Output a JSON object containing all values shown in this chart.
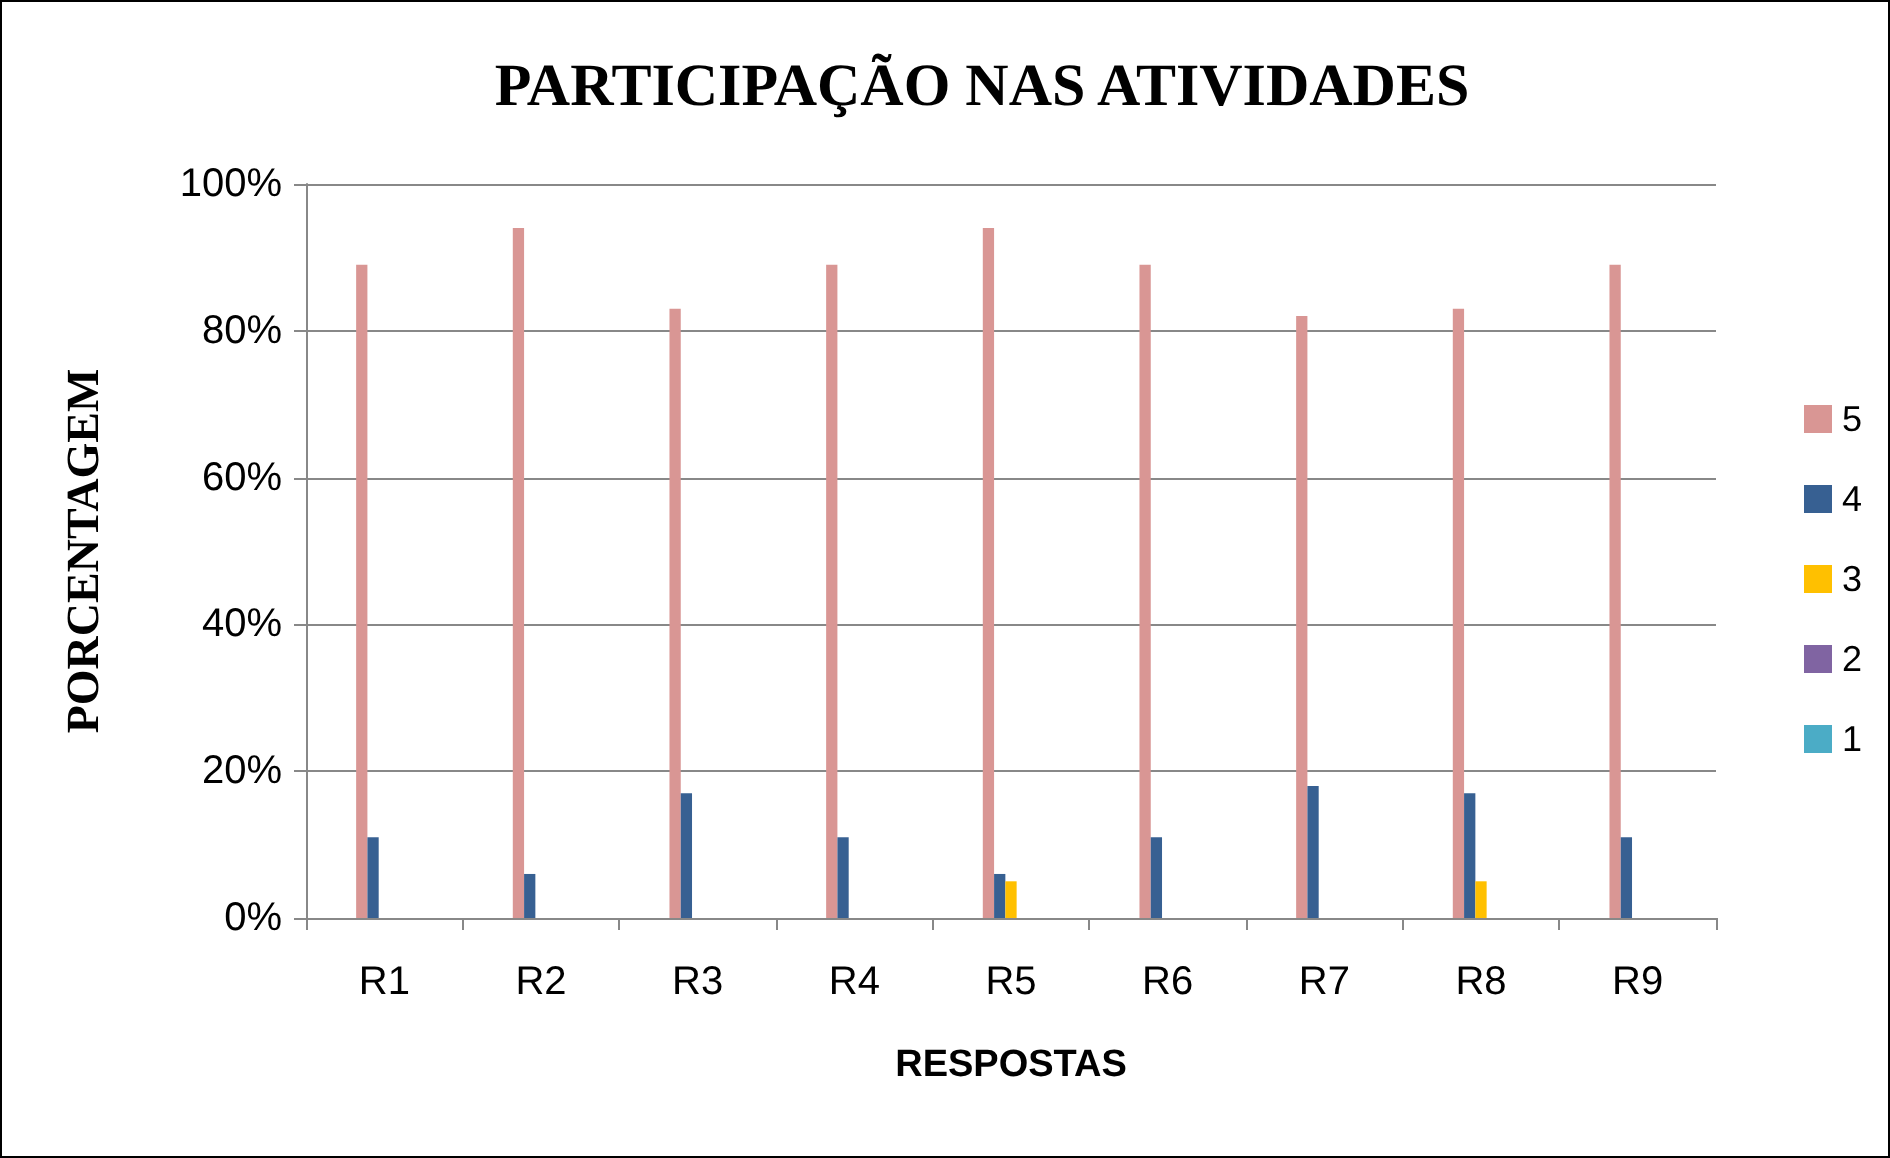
{
  "chart_data": {
    "type": "bar",
    "title": "PARTICIPAÇÃO NAS ATIVIDADES",
    "xlabel": "RESPOSTAS",
    "ylabel": "PORCENTAGEM",
    "categories": [
      "R1",
      "R2",
      "R3",
      "R4",
      "R5",
      "R6",
      "R7",
      "R8",
      "R9"
    ],
    "series": [
      {
        "name": "5",
        "color": "#d99694",
        "values": [
          89,
          94,
          83,
          89,
          94,
          89,
          82,
          83,
          89
        ]
      },
      {
        "name": "4",
        "color": "#376092",
        "values": [
          11,
          6,
          17,
          11,
          6,
          11,
          18,
          17,
          11
        ]
      },
      {
        "name": "3",
        "color": "#ffc000",
        "values": [
          0,
          0,
          0,
          0,
          5,
          0,
          0,
          5,
          0
        ]
      },
      {
        "name": "2",
        "color": "#8064a2",
        "values": [
          0,
          0,
          0,
          0,
          0,
          0,
          0,
          0,
          0
        ]
      },
      {
        "name": "1",
        "color": "#4bacc6",
        "values": [
          0,
          0,
          0,
          0,
          0,
          0,
          0,
          0,
          0
        ]
      }
    ],
    "ylim": [
      0,
      100
    ],
    "yticks": [
      {
        "value": 0,
        "label": "0%"
      },
      {
        "value": 20,
        "label": "20%"
      },
      {
        "value": 40,
        "label": "40%"
      },
      {
        "value": 60,
        "label": "60%"
      },
      {
        "value": 80,
        "label": "80%"
      },
      {
        "value": 100,
        "label": "100%"
      }
    ],
    "grid": "y",
    "legend": "right"
  }
}
